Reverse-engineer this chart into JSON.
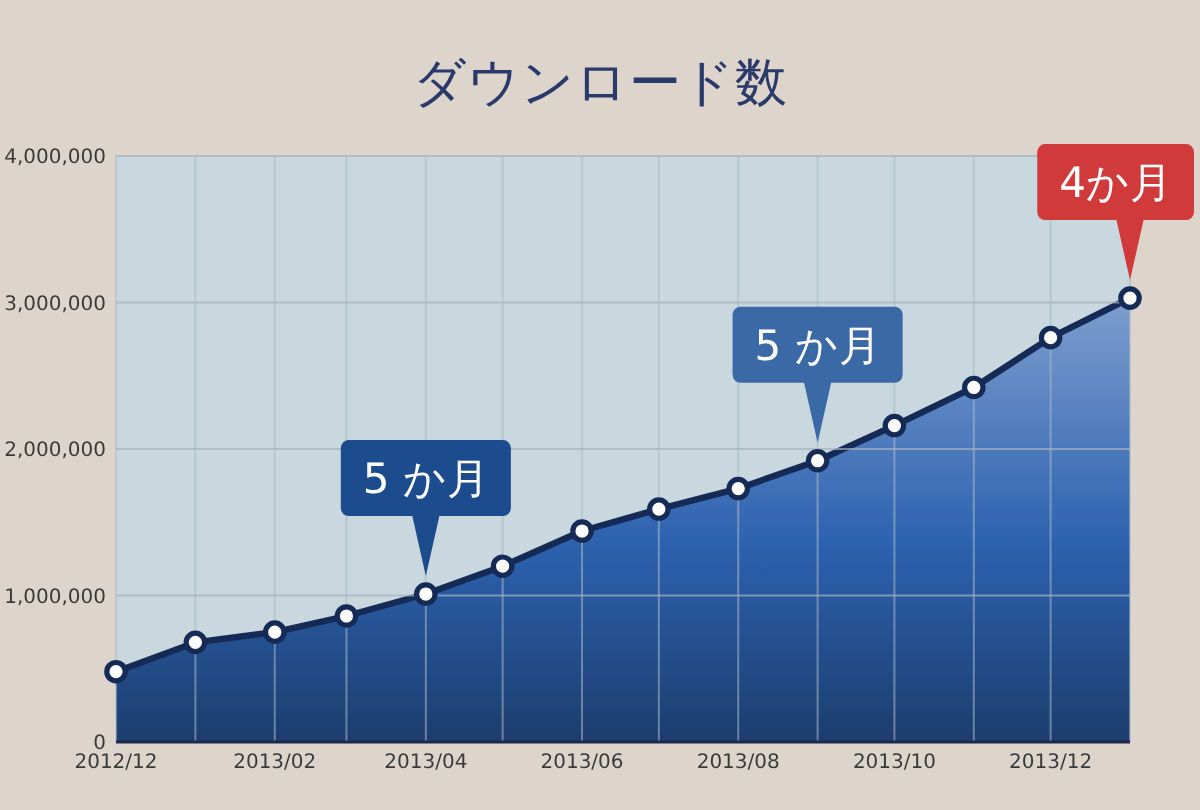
{
  "chart_data": {
    "type": "area",
    "title": "ダウンロード数",
    "x": [
      "2012-12",
      "2013-01",
      "2013-02",
      "2013-03",
      "2013-04",
      "2013-05",
      "2013-06",
      "2013-07",
      "2013-08",
      "2013-09",
      "2013-10",
      "2013-11",
      "2013-12",
      "2014-01"
    ],
    "series": [
      {
        "color": "#2d62b0",
        "values": [
          480000,
          680000,
          750000,
          860000,
          1010000,
          1200000,
          1440000,
          1590000,
          1730000,
          1920000,
          2160000,
          2420000,
          2760000,
          3030000
        ]
      }
    ],
    "xlim": [
      "2012-12",
      "2014-01"
    ],
    "xticks": [
      {
        "value": "2012-12",
        "label": "2012/12"
      },
      {
        "value": "2013-01",
        "label": null
      },
      {
        "value": "2013-02",
        "label": "2013/02"
      },
      {
        "value": "2013-03",
        "label": null
      },
      {
        "value": "2013-04",
        "label": "2013/04"
      },
      {
        "value": "2013-05",
        "label": null
      },
      {
        "value": "2013-06",
        "label": "2013/06"
      },
      {
        "value": "2013-07",
        "label": null
      },
      {
        "value": "2013-08",
        "label": "2013/08"
      },
      {
        "value": "2013-09",
        "label": null
      },
      {
        "value": "2013-10",
        "label": "2013/10"
      },
      {
        "value": "2013-11",
        "label": null
      },
      {
        "value": "2013-12",
        "label": "2013/12"
      },
      {
        "value": "2014-01",
        "label": null
      }
    ],
    "ylim": [
      0,
      4000000
    ],
    "yticks": [
      0,
      {
        "value": 1000000,
        "label": "1,000,000"
      },
      {
        "value": 2000000,
        "label": "2,000,000"
      },
      {
        "value": 3000000,
        "label": "3,000,000"
      },
      {
        "value": 4000000,
        "label": "4,000,000"
      }
    ],
    "grid": true,
    "marker": "circle",
    "annotations": [
      {
        "text": "5 か月",
        "x": "2013-04",
        "y": 1010000
      },
      {
        "text": "5 か月",
        "x": "2013-09",
        "y": 1920000
      },
      {
        "text": "4か月",
        "x": "2014-01",
        "y": 3030000
      }
    ]
  }
}
